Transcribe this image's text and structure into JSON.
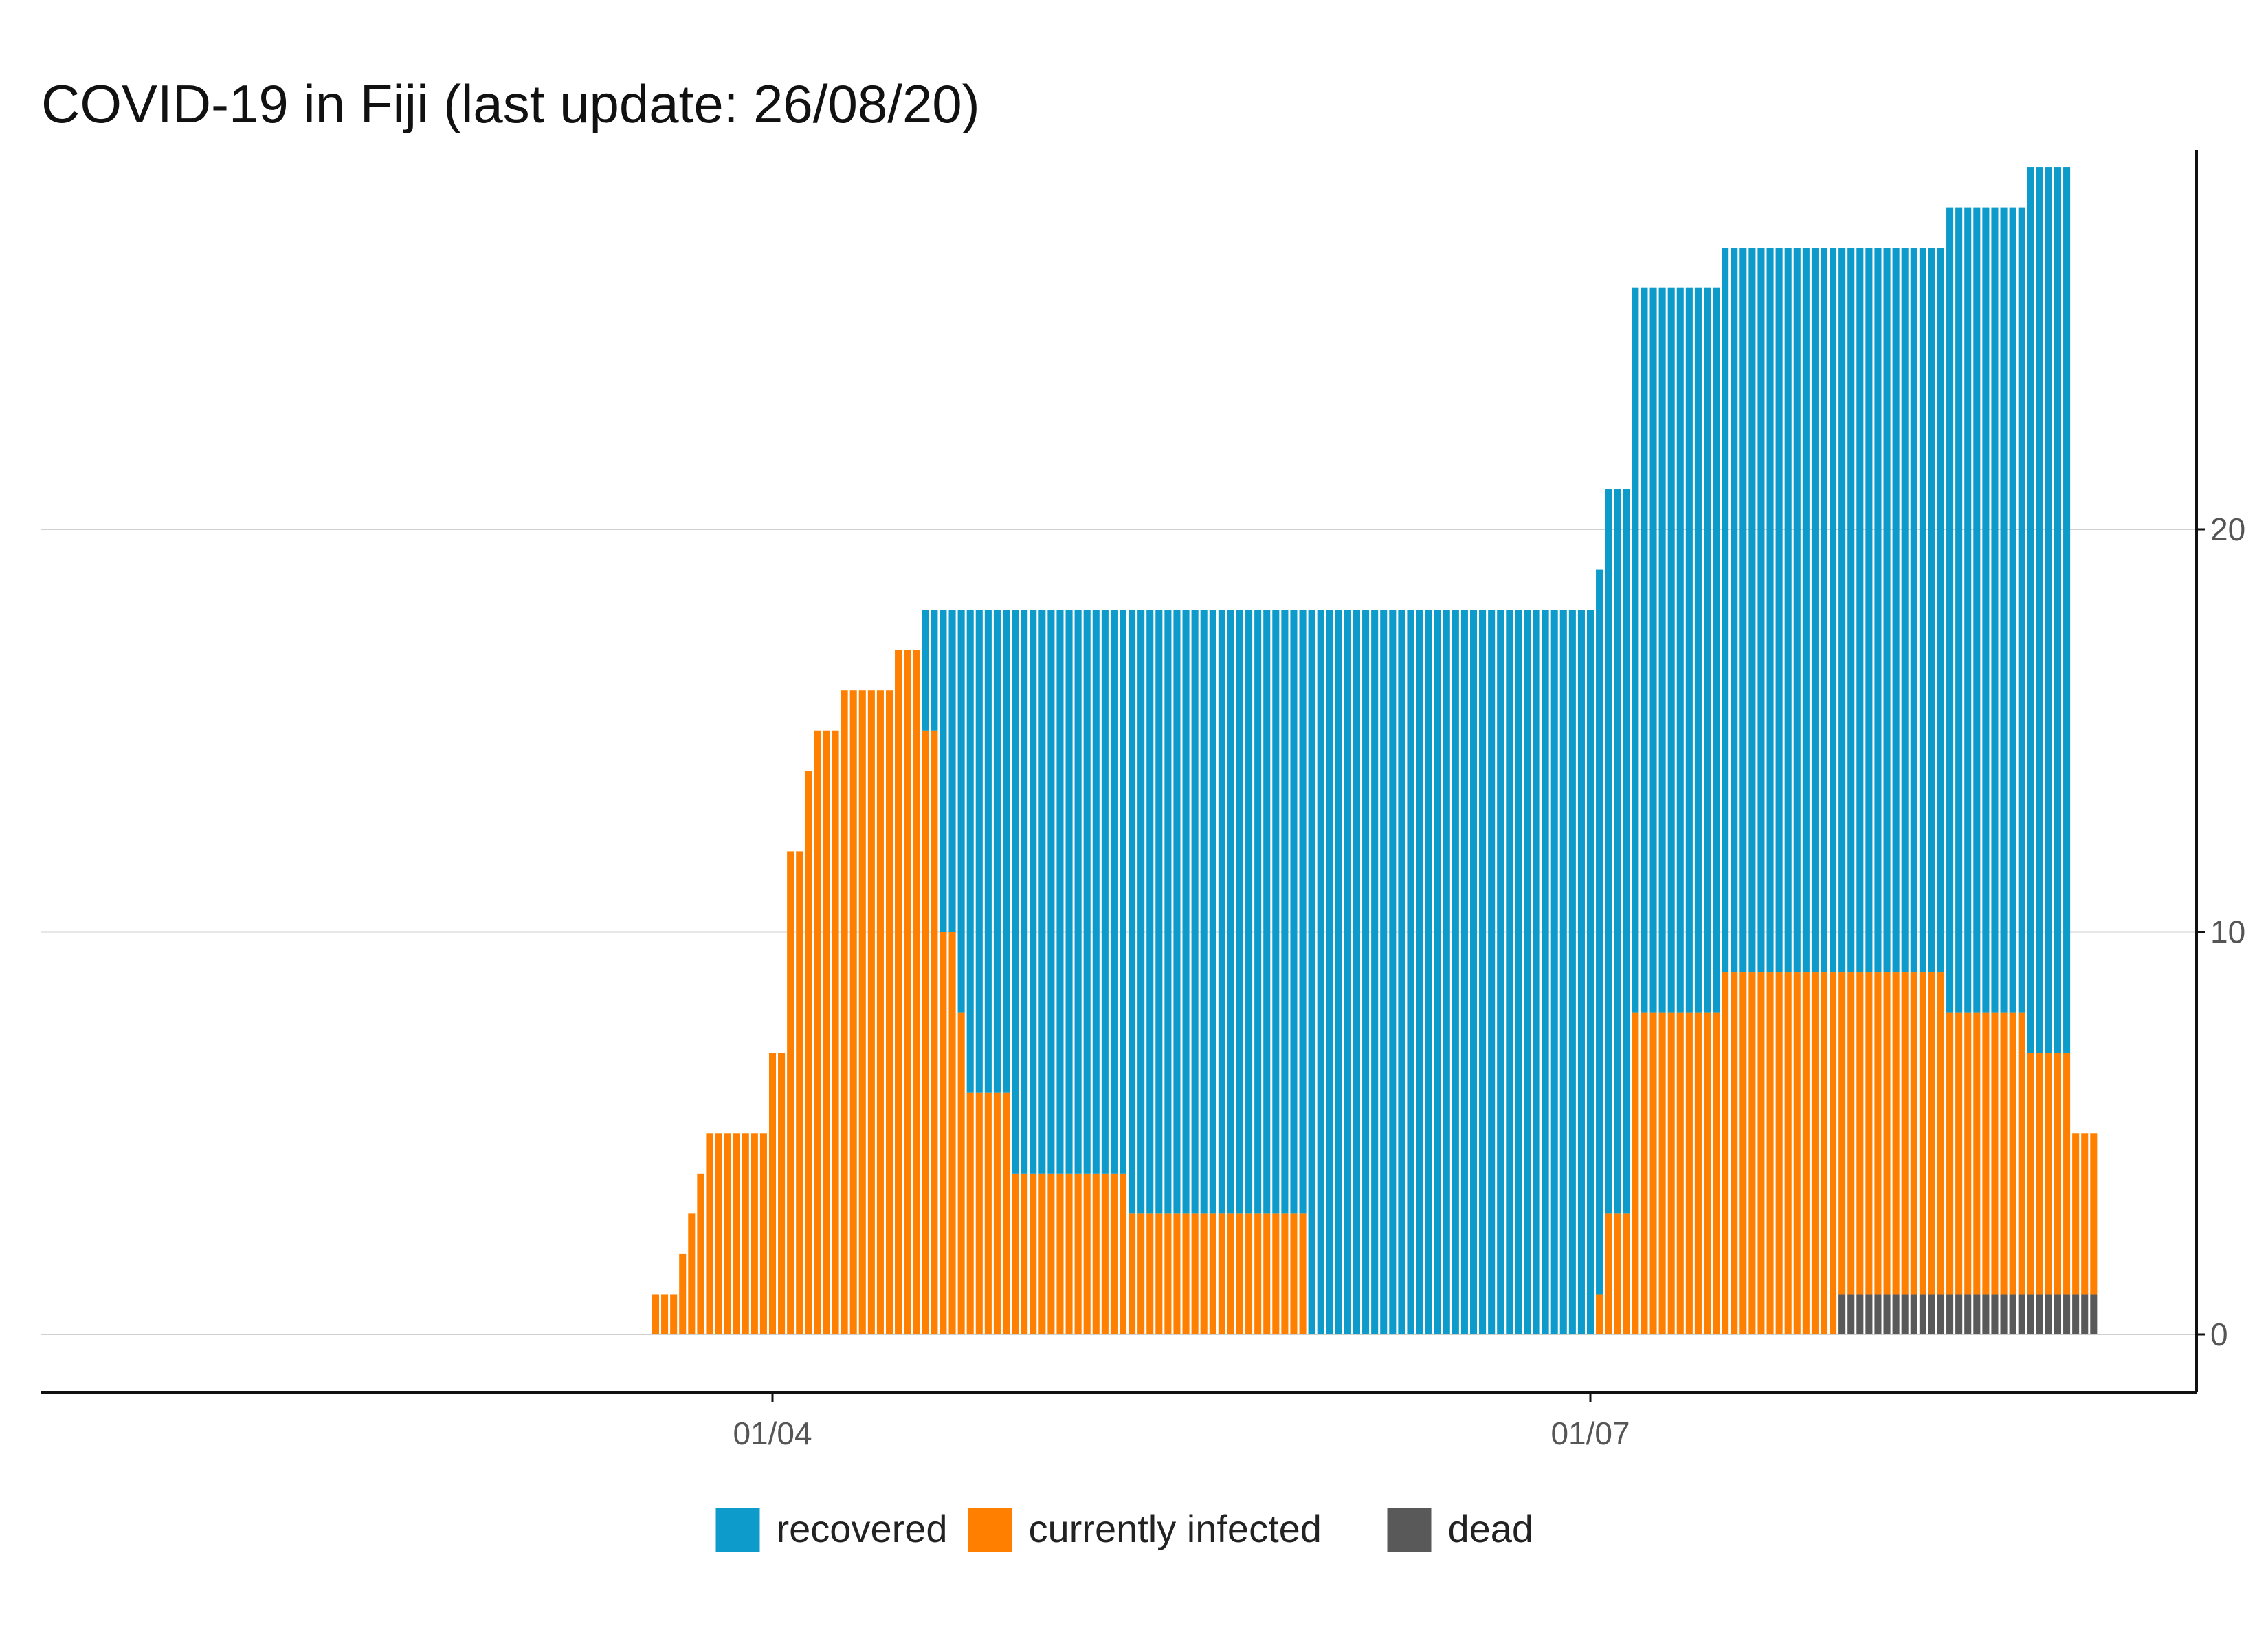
{
  "chart_data": {
    "type": "bar",
    "stacked": true,
    "title": "COVID-19 in Fiji (last update: 26/08/20)",
    "xlabel": "",
    "ylabel": "",
    "x_start": "2020-01-23",
    "x_end": "2020-08-26",
    "x_ticks": [
      {
        "date": "2020-04-01",
        "label": "01/04"
      },
      {
        "date": "2020-07-01",
        "label": "01/07"
      }
    ],
    "y_ticks": [
      0,
      10,
      20
    ],
    "ylim": [
      -1.5,
      29.2
    ],
    "y_axis_position": "right",
    "grid": "horizontal",
    "legend_position": "bottom",
    "stack_order": [
      "dead",
      "currently infected",
      "recovered"
    ],
    "series": [
      {
        "name": "recovered",
        "color": "#0D9BCB",
        "segments": [
          {
            "from": "2020-04-18",
            "to": "2020-04-18",
            "value": 3
          },
          {
            "from": "2020-04-19",
            "to": "2020-04-19",
            "value": 3
          },
          {
            "from": "2020-04-20",
            "to": "2020-04-21",
            "value": 8
          },
          {
            "from": "2020-04-22",
            "to": "2020-04-22",
            "value": 10
          },
          {
            "from": "2020-04-23",
            "to": "2020-04-27",
            "value": 12
          },
          {
            "from": "2020-04-28",
            "to": "2020-05-10",
            "value": 14
          },
          {
            "from": "2020-05-11",
            "to": "2020-05-30",
            "value": 15
          },
          {
            "from": "2020-05-31",
            "to": "2020-07-01",
            "value": 18
          },
          {
            "from": "2020-07-02",
            "to": "2020-07-02",
            "value": 18
          },
          {
            "from": "2020-07-03",
            "to": "2020-07-05",
            "value": 18
          },
          {
            "from": "2020-07-06",
            "to": "2020-07-15",
            "value": 18
          },
          {
            "from": "2020-07-16",
            "to": "2020-07-28",
            "value": 18
          },
          {
            "from": "2020-07-29",
            "to": "2020-08-09",
            "value": 18
          },
          {
            "from": "2020-08-10",
            "to": "2020-08-18",
            "value": 20
          },
          {
            "from": "2020-08-19",
            "to": "2020-08-23",
            "value": 22
          }
        ]
      },
      {
        "name": "currently infected",
        "color": "#FF8000",
        "segments": [
          {
            "from": "2020-03-19",
            "to": "2020-03-21",
            "value": 1
          },
          {
            "from": "2020-03-22",
            "to": "2020-03-22",
            "value": 2
          },
          {
            "from": "2020-03-23",
            "to": "2020-03-23",
            "value": 3
          },
          {
            "from": "2020-03-24",
            "to": "2020-03-24",
            "value": 4
          },
          {
            "from": "2020-03-25",
            "to": "2020-03-31",
            "value": 5
          },
          {
            "from": "2020-04-01",
            "to": "2020-04-02",
            "value": 7
          },
          {
            "from": "2020-04-03",
            "to": "2020-04-04",
            "value": 12
          },
          {
            "from": "2020-04-05",
            "to": "2020-04-05",
            "value": 14
          },
          {
            "from": "2020-04-06",
            "to": "2020-04-08",
            "value": 15
          },
          {
            "from": "2020-04-09",
            "to": "2020-04-14",
            "value": 16
          },
          {
            "from": "2020-04-15",
            "to": "2020-04-18",
            "value": 17
          },
          {
            "from": "2020-04-18",
            "to": "2020-04-18",
            "value": 15
          },
          {
            "from": "2020-04-19",
            "to": "2020-04-19",
            "value": 15
          },
          {
            "from": "2020-04-20",
            "to": "2020-04-21",
            "value": 10
          },
          {
            "from": "2020-04-22",
            "to": "2020-04-22",
            "value": 8
          },
          {
            "from": "2020-04-23",
            "to": "2020-04-27",
            "value": 6
          },
          {
            "from": "2020-04-28",
            "to": "2020-05-10",
            "value": 4
          },
          {
            "from": "2020-05-11",
            "to": "2020-05-30",
            "value": 3
          },
          {
            "from": "2020-07-02",
            "to": "2020-07-02",
            "value": 1
          },
          {
            "from": "2020-07-03",
            "to": "2020-07-05",
            "value": 3
          },
          {
            "from": "2020-07-06",
            "to": "2020-07-15",
            "value": 8
          },
          {
            "from": "2020-07-16",
            "to": "2020-07-28",
            "value": 9
          },
          {
            "from": "2020-07-29",
            "to": "2020-08-09",
            "value": 8
          },
          {
            "from": "2020-08-10",
            "to": "2020-08-18",
            "value": 7
          },
          {
            "from": "2020-08-19",
            "to": "2020-08-23",
            "value": 6
          },
          {
            "from": "2020-08-24",
            "to": "2020-08-26",
            "value": 4
          }
        ]
      },
      {
        "name": "dead",
        "color": "#595959",
        "segments": [
          {
            "from": "2020-07-29",
            "to": "2020-08-26",
            "value": 1
          }
        ]
      }
    ]
  }
}
